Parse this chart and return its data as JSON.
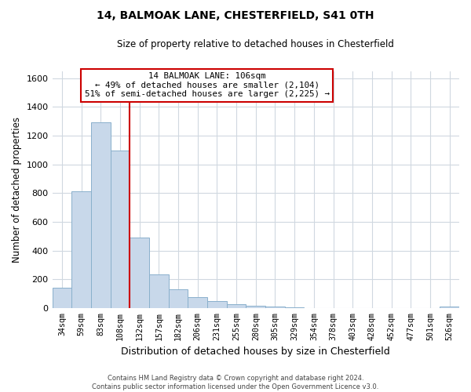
{
  "title": "14, BALMOAK LANE, CHESTERFIELD, S41 0TH",
  "subtitle": "Size of property relative to detached houses in Chesterfield",
  "xlabel": "Distribution of detached houses by size in Chesterfield",
  "ylabel": "Number of detached properties",
  "bar_labels": [
    "34sqm",
    "59sqm",
    "83sqm",
    "108sqm",
    "132sqm",
    "157sqm",
    "182sqm",
    "206sqm",
    "231sqm",
    "255sqm",
    "280sqm",
    "305sqm",
    "329sqm",
    "354sqm",
    "378sqm",
    "403sqm",
    "428sqm",
    "452sqm",
    "477sqm",
    "501sqm",
    "526sqm"
  ],
  "bar_values": [
    140,
    810,
    1295,
    1095,
    490,
    235,
    130,
    75,
    50,
    28,
    15,
    8,
    3,
    1,
    1,
    0,
    0,
    0,
    0,
    0,
    8
  ],
  "bar_color": "#c8d8ea",
  "bar_edge_color": "#8ab0cc",
  "vline_color": "#cc0000",
  "vline_pos": 3.5,
  "ylim": [
    0,
    1650
  ],
  "yticks": [
    0,
    200,
    400,
    600,
    800,
    1000,
    1200,
    1400,
    1600
  ],
  "annotation_text": "14 BALMOAK LANE: 106sqm\n← 49% of detached houses are smaller (2,104)\n51% of semi-detached houses are larger (2,225) →",
  "annotation_box_color": "#ffffff",
  "annotation_box_edge": "#cc0000",
  "footer_text": "Contains HM Land Registry data © Crown copyright and database right 2024.\nContains public sector information licensed under the Open Government Licence v3.0.",
  "bg_color": "#ffffff",
  "grid_color": "#d0d8e0"
}
